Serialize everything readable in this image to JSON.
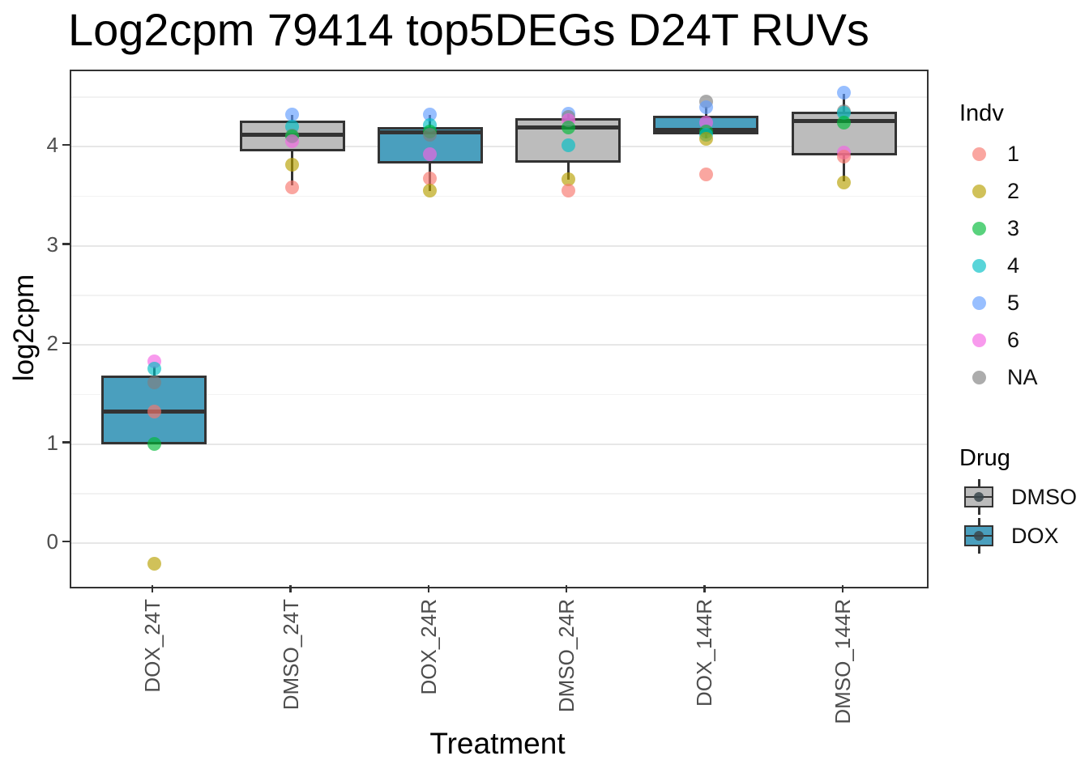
{
  "title": "Log2cpm 79414 top5DEGs D24T RUVs",
  "chart_data": {
    "type": "boxplot",
    "title": "Log2cpm 79414 top5DEGs D24T RUVs",
    "xlabel": "Treatment",
    "ylabel": "log2cpm",
    "categories": [
      "DOX_24T",
      "DMSO_24T",
      "DOX_24R",
      "DMSO_24R",
      "DOX_144R",
      "DMSO_144R"
    ],
    "y_ticks": [
      0,
      1,
      2,
      3,
      4
    ],
    "y_minor_gridlines": [
      0.5,
      1.5,
      2.5,
      3.5,
      4.5
    ],
    "ylim": [
      -0.44,
      4.76
    ],
    "grid": true,
    "legend_position": "right",
    "point_alpha": 0.65,
    "indv_colors": {
      "1": "#F8766D",
      "2": "#B79F00",
      "3": "#00BA38",
      "4": "#00BFC4",
      "5": "#619CFF",
      "6": "#F564E3",
      "NA": "#7F7F7F"
    },
    "drug_colors": {
      "DMSO": "#BCBCBC",
      "DOX": "#4A9FBE"
    },
    "boxes": [
      {
        "category": "DOX_24T",
        "drug": "DOX",
        "q1": 1.0,
        "median": 1.33,
        "q3": 1.69,
        "whisker_low": 1.0,
        "whisker_high": 1.78,
        "points": [
          {
            "indv": "6",
            "value": 1.83
          },
          {
            "indv": "4",
            "value": 1.76
          },
          {
            "indv": "NA",
            "value": 1.62
          },
          {
            "indv": "1",
            "value": 1.33
          },
          {
            "indv": "3",
            "value": 1.0
          },
          {
            "indv": "2",
            "value": -0.21
          }
        ]
      },
      {
        "category": "DMSO_24T",
        "drug": "DMSO",
        "q1": 3.95,
        "median": 4.12,
        "q3": 4.26,
        "whisker_low": 3.61,
        "whisker_high": 4.32,
        "points": [
          {
            "indv": "5",
            "value": 4.32
          },
          {
            "indv": "4",
            "value": 4.2
          },
          {
            "indv": "NA",
            "value": 4.11
          },
          {
            "indv": "3",
            "value": 4.1
          },
          {
            "indv": "6",
            "value": 4.05
          },
          {
            "indv": "2",
            "value": 3.82
          },
          {
            "indv": "1",
            "value": 3.59
          }
        ]
      },
      {
        "category": "DOX_24R",
        "drug": "DOX",
        "q1": 3.83,
        "median": 4.14,
        "q3": 4.2,
        "whisker_low": 3.55,
        "whisker_high": 4.32,
        "points": [
          {
            "indv": "5",
            "value": 4.32
          },
          {
            "indv": "4",
            "value": 4.22
          },
          {
            "indv": "3",
            "value": 4.15
          },
          {
            "indv": "NA",
            "value": 4.12
          },
          {
            "indv": "6",
            "value": 3.92
          },
          {
            "indv": "1",
            "value": 3.68
          },
          {
            "indv": "2",
            "value": 3.56
          }
        ]
      },
      {
        "category": "DMSO_24R",
        "drug": "DMSO",
        "q1": 3.84,
        "median": 4.19,
        "q3": 4.29,
        "whisker_low": 3.67,
        "whisker_high": 4.33,
        "points": [
          {
            "indv": "5",
            "value": 4.33
          },
          {
            "indv": "NA",
            "value": 4.3
          },
          {
            "indv": "6",
            "value": 4.27
          },
          {
            "indv": "3",
            "value": 4.19
          },
          {
            "indv": "4",
            "value": 4.01
          },
          {
            "indv": "2",
            "value": 3.67
          },
          {
            "indv": "1",
            "value": 3.56
          }
        ]
      },
      {
        "category": "DOX_144R",
        "drug": "DOX",
        "q1": 4.12,
        "median": 4.17,
        "q3": 4.31,
        "whisker_low": 4.08,
        "whisker_high": 4.4,
        "points": [
          {
            "indv": "NA",
            "value": 4.45
          },
          {
            "indv": "5",
            "value": 4.4
          },
          {
            "indv": "6",
            "value": 4.24
          },
          {
            "indv": "3",
            "value": 4.15
          },
          {
            "indv": "4",
            "value": 4.12
          },
          {
            "indv": "2",
            "value": 4.08
          },
          {
            "indv": "1",
            "value": 3.72
          }
        ]
      },
      {
        "category": "DMSO_144R",
        "drug": "DMSO",
        "q1": 3.91,
        "median": 4.26,
        "q3": 4.35,
        "whisker_low": 3.65,
        "whisker_high": 4.53,
        "points": [
          {
            "indv": "5",
            "value": 4.54
          },
          {
            "indv": "NA",
            "value": 4.36
          },
          {
            "indv": "4",
            "value": 4.34
          },
          {
            "indv": "3",
            "value": 4.24
          },
          {
            "indv": "6",
            "value": 3.94
          },
          {
            "indv": "1",
            "value": 3.9
          },
          {
            "indv": "2",
            "value": 3.64
          }
        ]
      }
    ],
    "legend": {
      "indv": {
        "title": "Indv",
        "items": [
          {
            "label": "1",
            "color": "#F8766D"
          },
          {
            "label": "2",
            "color": "#B79F00"
          },
          {
            "label": "3",
            "color": "#00BA38"
          },
          {
            "label": "4",
            "color": "#00BFC4"
          },
          {
            "label": "5",
            "color": "#619CFF"
          },
          {
            "label": "6",
            "color": "#F564E3"
          },
          {
            "label": "NA",
            "color": "#7F7F7F"
          }
        ]
      },
      "drug": {
        "title": "Drug",
        "items": [
          {
            "label": "DMSO",
            "color": "#BCBCBC"
          },
          {
            "label": "DOX",
            "color": "#4A9FBE"
          }
        ]
      }
    }
  }
}
